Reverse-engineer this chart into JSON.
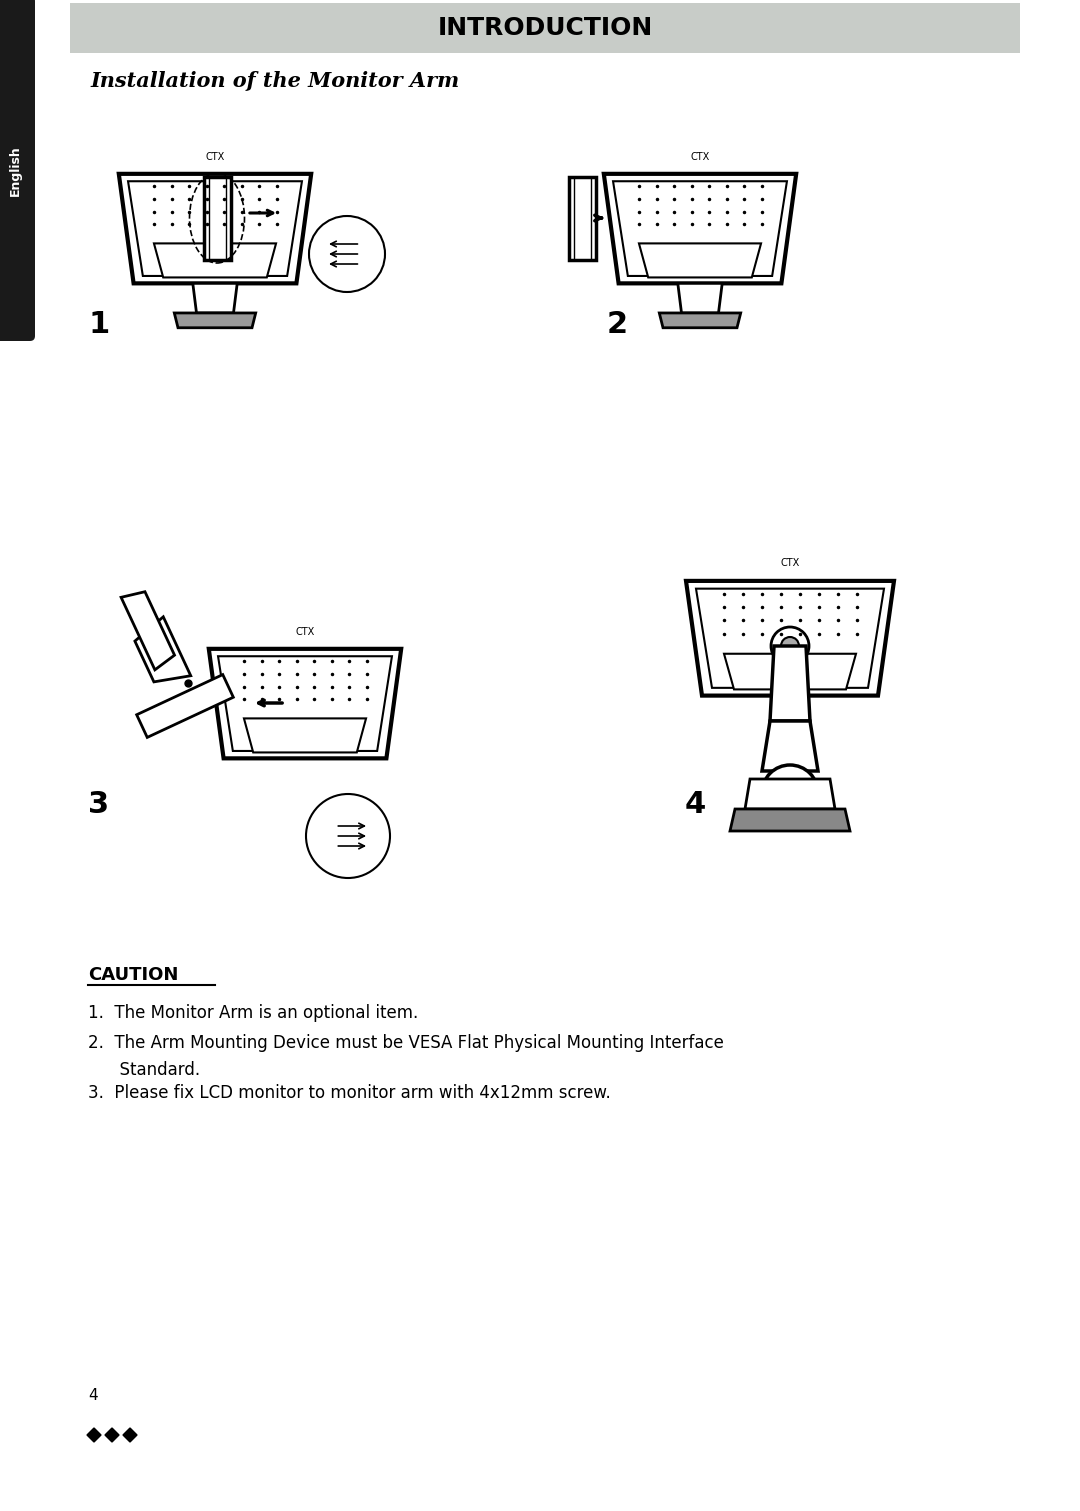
{
  "page_bg": "#ffffff",
  "header_bg": "#c8ccc8",
  "header_text": "INTRODUCTION",
  "header_text_color": "#000000",
  "sidebar_bg": "#1a1a1a",
  "sidebar_text": "English",
  "sidebar_text_color": "#ffffff",
  "subtitle": "Installation of the Monitor Arm",
  "caution_title": "CAUTION",
  "caution_item1": "1.  The Monitor Arm is an optional item.",
  "caution_item2": "2.  The Arm Mounting Device must be VESA Flat Physical Mounting Interface",
  "caution_item2b": "      Standard.",
  "caution_item3": "3.  Please fix LCD monitor to monitor arm with 4x12mm screw.",
  "page_number": "4",
  "step_labels": [
    "1",
    "2",
    "3",
    "4"
  ],
  "ctx_label": "CTX"
}
